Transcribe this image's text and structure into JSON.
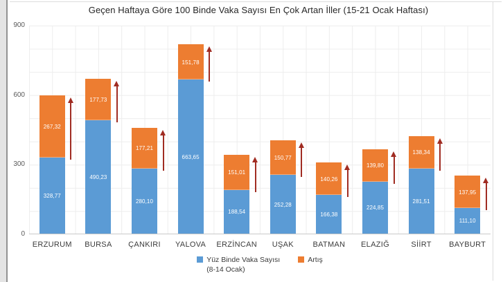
{
  "chart_data": {
    "type": "bar",
    "stacked": true,
    "title": "Geçen Haftaya Göre 100 Binde Vaka Sayısı En Çok Artan İller (15-21 Ocak Haftası)",
    "categories": [
      "ERZURUM",
      "BURSA",
      "ÇANKIRI",
      "YALOVA",
      "ERZİNCAN",
      "UŞAK",
      "BATMAN",
      "ELAZIĞ",
      "SİİRT",
      "BAYBURT"
    ],
    "series": [
      {
        "name": "Yüz Binde Vaka Sayısı (8-14 Ocak)",
        "color": "#5b9bd5",
        "values": [
          328.77,
          490.23,
          280.1,
          663.65,
          188.54,
          252.28,
          166.38,
          224.85,
          281.51,
          111.1
        ],
        "labels": [
          "328,77",
          "490,23",
          "280,10",
          "663,65",
          "188,54",
          "252,28",
          "166,38",
          "224,85",
          "281,51",
          "111,10"
        ]
      },
      {
        "name": "Artış",
        "color": "#ed7d31",
        "values": [
          267.32,
          177.73,
          177.21,
          151.78,
          151.01,
          150.77,
          140.26,
          139.8,
          138.34,
          137.95
        ],
        "labels": [
          "267,32",
          "177,73",
          "177,21",
          "151,78",
          "151,01",
          "150,77",
          "140,26",
          "139,80",
          "138,34",
          "137,95"
        ]
      }
    ],
    "annotations": "dark red up-arrow beside each bar spanning the increase segment",
    "arrow_color": "#a02c22",
    "xlabel": "",
    "ylabel": "",
    "ylim": [
      0,
      900
    ],
    "yticks": [
      0,
      300,
      600,
      900
    ],
    "ytick_labels": [
      "0",
      "300",
      "600",
      "900"
    ],
    "grid": "on",
    "legend_position": "bottom-center"
  },
  "legend": {
    "items": [
      {
        "label_line1": "Yüz Binde Vaka Sayısı",
        "label_line2": "(8-14 Ocak)",
        "color": "#5b9bd5"
      },
      {
        "label_line1": "Artış",
        "label_line2": "",
        "color": "#ed7d31"
      }
    ]
  },
  "colors": {
    "background": "#ffffff",
    "grid": "#ededed",
    "axis_line": "#c9c9c9",
    "tick_text": "#595959",
    "category_text": "#3b3b3b",
    "title_text": "#262626",
    "value_label_text": "#ffffff",
    "left_band": "#e4e4e4",
    "frame_line": "#dcdcdc"
  }
}
